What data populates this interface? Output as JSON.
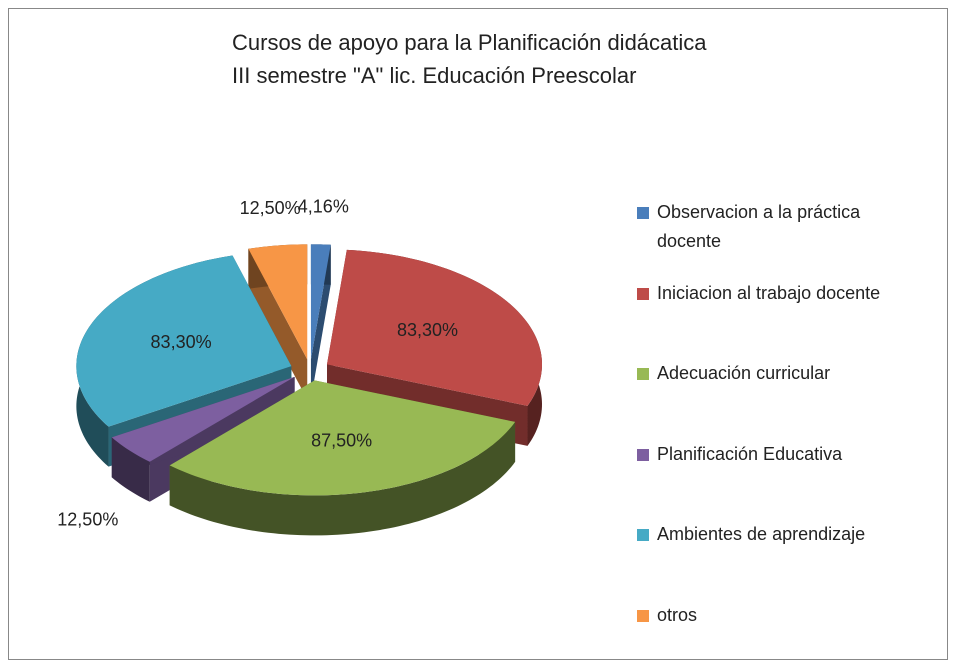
{
  "chart_data": {
    "type": "pie3d",
    "title": [
      "Cursos de apoyo para la Planificación didácatica",
      "III semestre \"A\"  lic. Educación Preescolar"
    ],
    "categories": [
      "Observacion a la práctica docente",
      "Iniciacion al trabajo docente",
      "Adecuación curricular",
      "Planificación Educativa",
      "Ambientes de aprendizaje",
      "otros"
    ],
    "values": [
      4.16,
      83.3,
      87.5,
      12.5,
      83.3,
      12.5
    ],
    "value_labels": [
      "4,16%",
      "83,30%",
      "87,50%",
      "12,50%",
      "83,30%",
      "12,50%"
    ],
    "colors": [
      "#4a7ebb",
      "#be4b48",
      "#98b954",
      "#7d5fa0",
      "#46aac5",
      "#f79646"
    ],
    "legend": "right"
  }
}
